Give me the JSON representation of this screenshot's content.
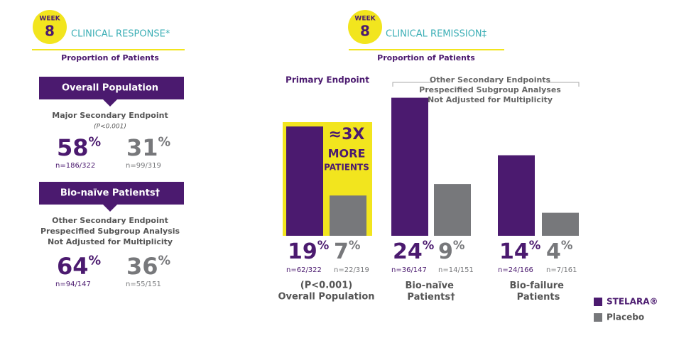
{
  "left_panel": {
    "badge": {
      "label": "WEEK",
      "number": "8"
    },
    "title": "CLINICAL RESPONSE*",
    "subtitle": "Proportion of Patients",
    "sections": [
      {
        "banner": "Overall Population",
        "endpoint_lines": [
          "Major Secondary Endpoint"
        ],
        "p_value": "(P<0.001)",
        "stelara": {
          "value": "58%",
          "n": "n=186/322"
        },
        "placebo": {
          "value": "31%",
          "n": "n=99/319"
        }
      },
      {
        "banner": "Bio-naïve Patients†",
        "endpoint_lines": [
          "Other Secondary Endpoint",
          "Prespecified Subgroup Analysis",
          "Not Adjusted for Multiplicity"
        ],
        "stelara": {
          "value": "64%",
          "n": "n=94/147"
        },
        "placebo": {
          "value": "36%",
          "n": "n=55/151"
        }
      }
    ]
  },
  "chart_data": {
    "type": "bar",
    "badge": {
      "label": "WEEK",
      "number": "8"
    },
    "title": "CLINICAL REMISSION‡",
    "subtitle": "Proportion of Patients",
    "annotations": {
      "primary": "Primary Endpoint",
      "bracket_lines": [
        "Other Secondary Endpoints",
        "Prespecified Subgroup Analyses",
        "Not Adjusted for Multiplicity"
      ],
      "callout_lines": [
        "≈3X",
        "MORE",
        "PATIENTS"
      ],
      "p_value": "(P<0.001)"
    },
    "categories": [
      "Overall Population",
      "Bio-naïve Patients†",
      "Bio-failure Patients"
    ],
    "series": [
      {
        "name": "STELARA®",
        "color": "#4b1a6f",
        "values": [
          19,
          24,
          14
        ],
        "value_labels": [
          "19%",
          "24%",
          "14%"
        ],
        "n_labels": [
          "n=62/322",
          "n=36/147",
          "n=24/166"
        ]
      },
      {
        "name": "Placebo",
        "color": "#77787b",
        "values": [
          7,
          9,
          4
        ],
        "value_labels": [
          "7%",
          "9%",
          "4%"
        ],
        "n_labels": [
          "n=22/319",
          "n=14/151",
          "n=7/161"
        ]
      }
    ],
    "legend": "bottom-right"
  }
}
